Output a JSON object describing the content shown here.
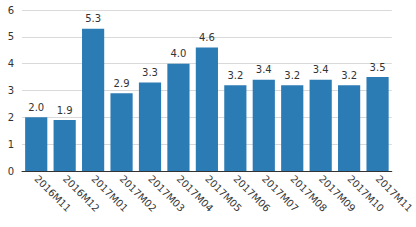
{
  "chart_data": {
    "type": "bar",
    "categories": [
      "2016M11",
      "2016M12",
      "2017M01",
      "2017M02",
      "2017M03",
      "2017M04",
      "2017M05",
      "2017M06",
      "2017M07",
      "2017M08",
      "2017M09",
      "2017M10",
      "2017M11"
    ],
    "values": [
      2.0,
      1.9,
      5.3,
      2.9,
      3.3,
      4.0,
      4.6,
      3.2,
      3.4,
      3.2,
      3.4,
      3.2,
      3.5
    ],
    "value_labels": [
      "2.0",
      "1.9",
      "5.3",
      "2.9",
      "3.3",
      "4.0",
      "4.6",
      "3.2",
      "3.4",
      "3.2",
      "3.4",
      "3.2",
      "3.5"
    ],
    "color": "#2b7bb5",
    "ylim": [
      0,
      6
    ],
    "yticks": [
      0,
      1,
      2,
      3,
      4,
      5,
      6
    ],
    "grid": true,
    "data_labels": true
  }
}
